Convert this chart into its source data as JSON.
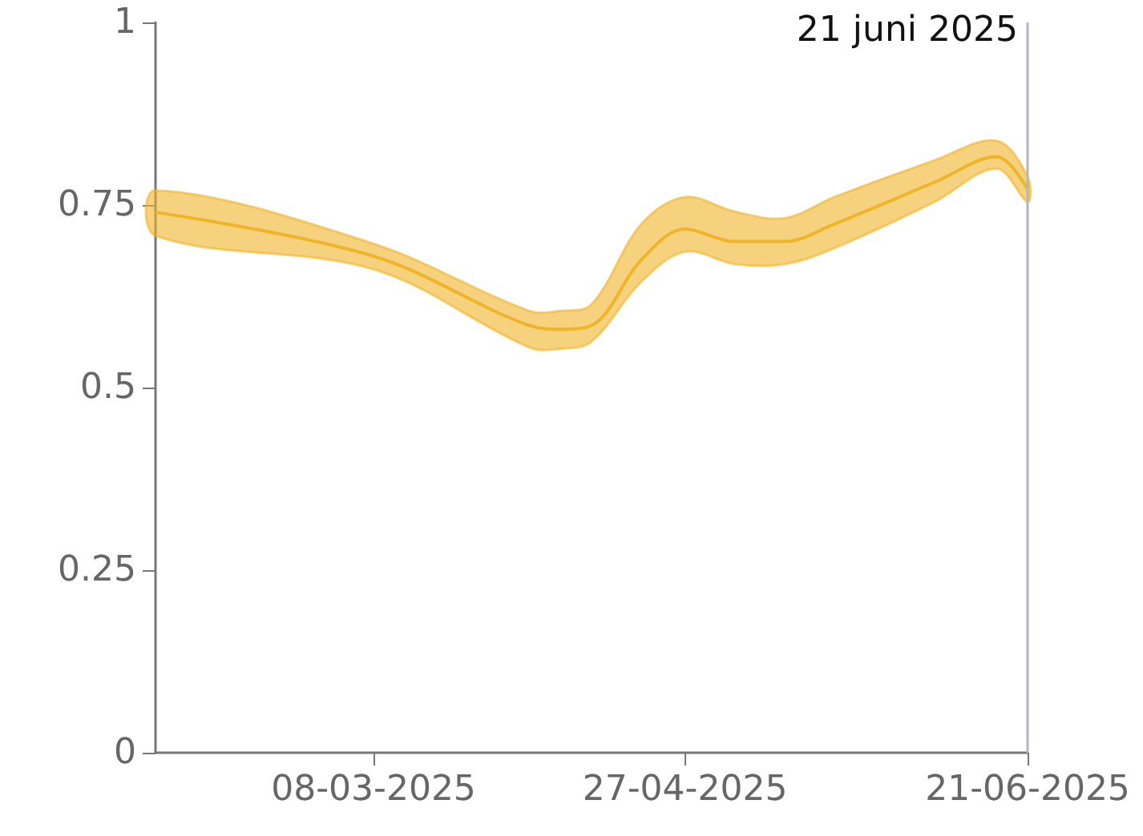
{
  "chart_data": {
    "type": "line",
    "x": [
      "2025-02-01",
      "2025-03-08",
      "2025-04-02",
      "2025-04-07",
      "2025-04-12",
      "2025-04-20",
      "2025-04-27",
      "2025-05-05",
      "2025-05-13",
      "2025-05-21",
      "2025-06-06",
      "2025-06-16",
      "2025-06-21"
    ],
    "series": [
      {
        "color": "#f0b429",
        "values": [
          0.74,
          0.68,
          0.585,
          0.58,
          0.585,
          0.675,
          0.717,
          0.7,
          0.7,
          0.724,
          0.781,
          0.816,
          0.772
        ],
        "lower": [
          0.708,
          0.662,
          0.555,
          0.553,
          0.563,
          0.645,
          0.686,
          0.669,
          0.669,
          0.691,
          0.754,
          0.8,
          0.754
        ],
        "upper": [
          0.77,
          0.697,
          0.605,
          0.605,
          0.614,
          0.724,
          0.761,
          0.741,
          0.732,
          0.761,
          0.811,
          0.838,
          0.789
        ]
      }
    ],
    "xlim": [
      "2025-02-01",
      "2025-06-21"
    ],
    "xticks": [
      {
        "value": "2025-03-08",
        "label": "08-03-2025"
      },
      {
        "value": "2025-04-27",
        "label": "27-04-2025"
      },
      {
        "value": "2025-06-21",
        "label": "21-06-2025"
      }
    ],
    "ylim": [
      0,
      1
    ],
    "yticks": [
      0,
      0.25,
      0.5,
      0.75,
      1
    ],
    "ref_lines": [
      {
        "axis": "x",
        "value": "2025-06-21",
        "label": "21 juni 2025",
        "color": "#b0b8bf"
      }
    ],
    "grid": false,
    "marker": "none",
    "line_style": "solid"
  }
}
